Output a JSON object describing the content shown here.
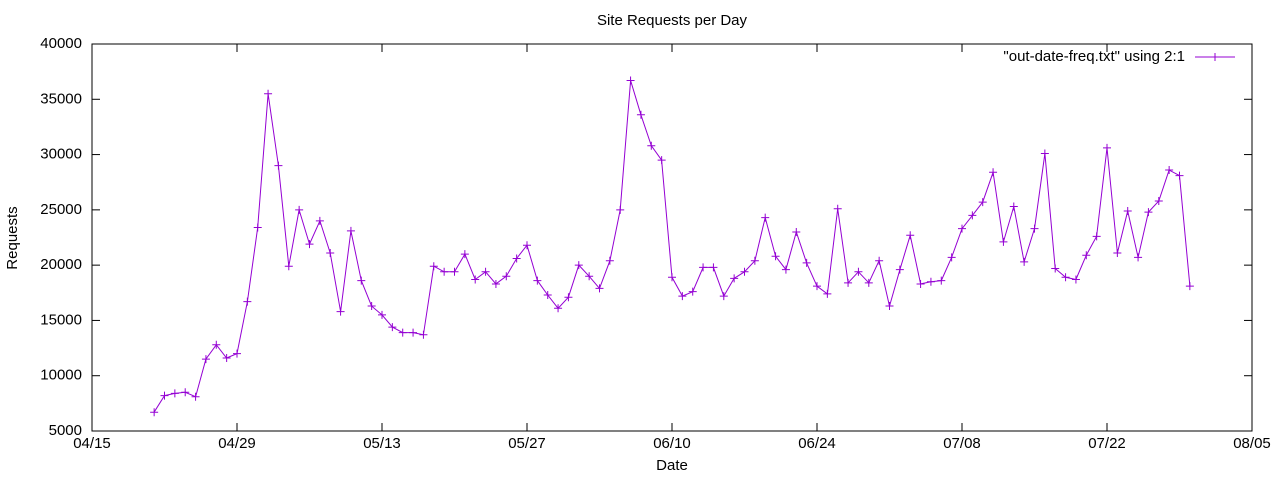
{
  "chart_data": {
    "type": "line",
    "title": "Site Requests per Day",
    "xlabel": "Date",
    "ylabel": "Requests",
    "x": [
      "04/21",
      "04/22",
      "04/23",
      "04/24",
      "04/25",
      "04/26",
      "04/27",
      "04/28",
      "04/29",
      "04/30",
      "05/01",
      "05/02",
      "05/03",
      "05/04",
      "05/05",
      "05/06",
      "05/07",
      "05/08",
      "05/09",
      "05/10",
      "05/11",
      "05/12",
      "05/13",
      "05/14",
      "05/15",
      "05/16",
      "05/17",
      "05/18",
      "05/19",
      "05/20",
      "05/21",
      "05/22",
      "05/23",
      "05/24",
      "05/25",
      "05/26",
      "05/27",
      "05/28",
      "05/29",
      "05/30",
      "05/31",
      "06/01",
      "06/02",
      "06/03",
      "06/04",
      "06/05",
      "06/06",
      "06/07",
      "06/08",
      "06/09",
      "06/10",
      "06/11",
      "06/12",
      "06/13",
      "06/14",
      "06/15",
      "06/16",
      "06/17",
      "06/18",
      "06/19",
      "06/20",
      "06/21",
      "06/22",
      "06/23",
      "06/24",
      "06/25",
      "06/26",
      "06/27",
      "06/28",
      "06/29",
      "06/30",
      "07/01",
      "07/02",
      "07/03",
      "07/04",
      "07/05",
      "07/06",
      "07/07",
      "07/08",
      "07/09",
      "07/10",
      "07/11",
      "07/12",
      "07/13",
      "07/14",
      "07/15",
      "07/16",
      "07/17",
      "07/18",
      "07/19",
      "07/20",
      "07/21",
      "07/22",
      "07/23",
      "07/24",
      "07/25",
      "07/26",
      "07/27",
      "07/28",
      "07/29",
      "07/30"
    ],
    "series": [
      {
        "name": "\"out-date-freq.txt\" using 2:1",
        "color": "#9400d3",
        "values": [
          6700,
          8200,
          8400,
          8500,
          8100,
          11500,
          12800,
          11600,
          12000,
          16700,
          23400,
          35500,
          29000,
          19900,
          25000,
          21900,
          24000,
          21100,
          15800,
          23100,
          18600,
          16300,
          15500,
          14400,
          13900,
          13900,
          13700,
          19900,
          19400,
          19400,
          21000,
          18700,
          19400,
          18300,
          19000,
          20600,
          21800,
          18600,
          17300,
          16100,
          17100,
          20000,
          19000,
          17900,
          20400,
          25000,
          36700,
          33600,
          30800,
          29500,
          18900,
          17200,
          17600,
          19800,
          19800,
          17200,
          18800,
          19400,
          20400,
          24300,
          20800,
          19600,
          23000,
          20200,
          18100,
          17400,
          25100,
          18400,
          19400,
          18400,
          20400,
          16300,
          19600,
          22700,
          18300,
          18500,
          18600,
          20700,
          23300,
          24500,
          25700,
          28400,
          22100,
          25300,
          20300,
          23300,
          30100,
          19700,
          18900,
          18700,
          20900,
          22600,
          30600,
          21100,
          24900,
          20700,
          24800,
          25800,
          28600,
          28100,
          18100
        ]
      }
    ],
    "xlim": [
      "04/15",
      "08/05"
    ],
    "xticks": [
      "04/15",
      "04/29",
      "05/13",
      "05/27",
      "06/10",
      "06/24",
      "07/08",
      "07/22",
      "08/05"
    ],
    "ylim": [
      5000,
      40000
    ],
    "yticks": [
      5000,
      10000,
      15000,
      20000,
      25000,
      30000,
      35000,
      40000
    ],
    "legend": "top-right",
    "grid": false
  }
}
